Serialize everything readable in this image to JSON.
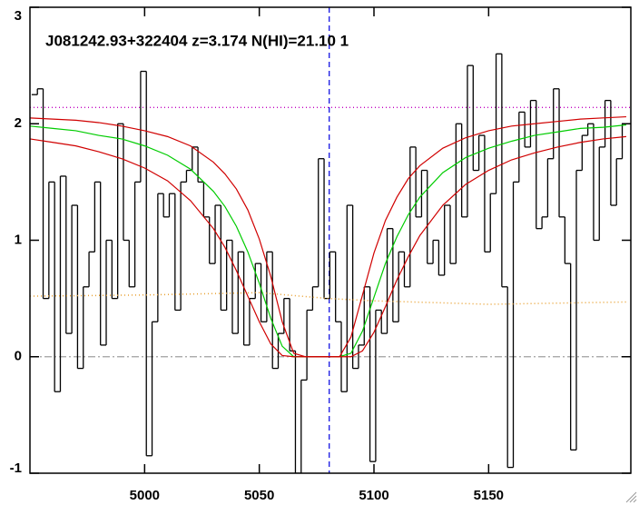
{
  "chart_data": {
    "type": "line",
    "title": "J081242.93+322404 z=3.174 N(HI)=21.10 1",
    "xlim": [
      4950,
      5212
    ],
    "ylim": [
      -1,
      3
    ],
    "xticks": [
      5000,
      5050,
      5100,
      5150
    ],
    "yticks": [
      -1,
      0,
      1,
      2,
      3
    ],
    "hlines": [
      {
        "y": 2.14,
        "color": "#c000c0",
        "style": "dotted"
      },
      {
        "y": 0,
        "color": "#a0a0a0",
        "style": "dashdot"
      }
    ],
    "vlines": [
      {
        "x": 5080.5,
        "color": "#0000e0",
        "style": "dashed"
      }
    ],
    "series": [
      {
        "color": "#000000",
        "style": "step",
        "x": [
          4952,
          4954.5,
          4957,
          4959.5,
          4962,
          4964.5,
          4967,
          4969.5,
          4972,
          4974.5,
          4977,
          4979.5,
          4982,
          4984.5,
          4987,
          4989.5,
          4992,
          4994.5,
          4997,
          4999.5,
          5002,
          5004.5,
          5007,
          5009.5,
          5012,
          5014.5,
          5017,
          5019.5,
          5022,
          5024.5,
          5027,
          5029.5,
          5032,
          5034.5,
          5037,
          5039.5,
          5042,
          5044.5,
          5047,
          5049.5,
          5052,
          5054.5,
          5057,
          5059.5,
          5062,
          5064.5,
          5067,
          5069.5,
          5072,
          5074.5,
          5077,
          5079.5,
          5082,
          5084.5,
          5087,
          5089.5,
          5092,
          5094.5,
          5097,
          5099.5,
          5102,
          5104.5,
          5107,
          5109.5,
          5112,
          5114.5,
          5117,
          5119.5,
          5122,
          5124.5,
          5127,
          5129.5,
          5132,
          5134.5,
          5137,
          5139.5,
          5142,
          5144.5,
          5147,
          5149.5,
          5152,
          5154.5,
          5157,
          5159.5,
          5162,
          5164.5,
          5167,
          5169.5,
          5172,
          5174.5,
          5177,
          5179.5,
          5182,
          5184.5,
          5187,
          5189.5,
          5192,
          5194.5,
          5197,
          5199.5,
          5202,
          5204.5,
          5207,
          5209.5
        ],
        "values": [
          2.25,
          2.3,
          0.5,
          1.5,
          -0.3,
          1.55,
          0.2,
          1.3,
          -0.1,
          0.6,
          0.9,
          1.5,
          0.1,
          1.0,
          0.5,
          2.0,
          1.0,
          0.6,
          1.5,
          2.45,
          -0.85,
          0.3,
          1.4,
          1.2,
          1.4,
          0.4,
          1.5,
          1.6,
          1.8,
          1.5,
          1.2,
          0.8,
          1.3,
          0.4,
          1.0,
          0.2,
          0.9,
          0.1,
          0.5,
          0.8,
          0.3,
          0.9,
          -0.1,
          0.2,
          0.5,
          0.05,
          -1.0,
          -0.2,
          0.4,
          0.6,
          1.7,
          0.5,
          0.9,
          0.3,
          -0.3,
          1.3,
          -0.1,
          0.1,
          0.6,
          -0.9,
          0.4,
          0.2,
          1.1,
          0.3,
          0.9,
          0.6,
          1.8,
          1.2,
          1.6,
          0.8,
          1.0,
          0.7,
          1.3,
          0.8,
          2.0,
          1.2,
          2.5,
          1.6,
          1.9,
          0.9,
          1.4,
          2.6,
          0.6,
          -0.95,
          1.5,
          2.1,
          1.8,
          2.2,
          1.1,
          1.2,
          1.7,
          2.3,
          1.2,
          0.8,
          -0.8,
          1.6,
          1.9,
          2.0,
          1.0,
          1.8,
          2.2,
          1.3,
          1.7,
          2.0
        ]
      },
      {
        "color": "#e8a030",
        "style": "dotted",
        "x": [
          4950,
          5000,
          5050,
          5080,
          5100,
          5150,
          5210
        ],
        "values": [
          0.52,
          0.53,
          0.55,
          0.5,
          0.48,
          0.45,
          0.47
        ]
      },
      {
        "color": "#00cc00",
        "style": "solid",
        "x": [
          4950,
          4960,
          4970,
          4980,
          4990,
          5000,
          5010,
          5020,
          5030,
          5035,
          5040,
          5045,
          5050,
          5055,
          5060,
          5065,
          5070,
          5075,
          5080,
          5085,
          5090,
          5095,
          5100,
          5105,
          5110,
          5115,
          5120,
          5130,
          5140,
          5150,
          5160,
          5170,
          5180,
          5190,
          5200,
          5210
        ],
        "values": [
          1.98,
          1.96,
          1.94,
          1.9,
          1.87,
          1.81,
          1.73,
          1.61,
          1.42,
          1.29,
          1.12,
          0.9,
          0.63,
          0.33,
          0.09,
          0,
          0,
          0,
          0,
          0,
          0.03,
          0.22,
          0.51,
          0.8,
          1.03,
          1.22,
          1.37,
          1.58,
          1.71,
          1.79,
          1.85,
          1.9,
          1.93,
          1.96,
          1.97,
          1.99
        ]
      },
      {
        "color": "#d00000",
        "style": "solid",
        "x": [
          4950,
          4960,
          4970,
          4980,
          4990,
          5000,
          5010,
          5020,
          5030,
          5035,
          5040,
          5045,
          5050,
          5055,
          5060,
          5065,
          5070,
          5075,
          5080,
          5085,
          5090,
          5095,
          5100,
          5105,
          5110,
          5115,
          5120,
          5130,
          5140,
          5150,
          5160,
          5170,
          5180,
          5190,
          5200,
          5210
        ],
        "values": [
          2.05,
          2.04,
          2.03,
          2.01,
          1.98,
          1.94,
          1.89,
          1.81,
          1.67,
          1.57,
          1.44,
          1.26,
          1.01,
          0.69,
          0.3,
          0.03,
          0,
          0,
          0,
          0,
          0.17,
          0.53,
          0.89,
          1.17,
          1.37,
          1.53,
          1.64,
          1.79,
          1.88,
          1.94,
          1.98,
          2.0,
          2.02,
          2.04,
          2.05,
          2.06
        ]
      },
      {
        "color": "#d00000",
        "style": "solid",
        "x": [
          4950,
          4960,
          4970,
          4980,
          4990,
          5000,
          5010,
          5020,
          5030,
          5035,
          5040,
          5045,
          5050,
          5055,
          5060,
          5065,
          5070,
          5075,
          5080,
          5085,
          5090,
          5095,
          5100,
          5105,
          5110,
          5115,
          5120,
          5130,
          5140,
          5150,
          5160,
          5170,
          5180,
          5190,
          5200,
          5210
        ],
        "values": [
          1.87,
          1.84,
          1.81,
          1.76,
          1.7,
          1.62,
          1.51,
          1.34,
          1.1,
          0.94,
          0.74,
          0.52,
          0.3,
          0.11,
          0.01,
          0,
          0,
          0,
          0,
          0,
          0,
          0.05,
          0.21,
          0.43,
          0.66,
          0.86,
          1.04,
          1.3,
          1.48,
          1.6,
          1.69,
          1.75,
          1.8,
          1.84,
          1.87,
          1.89
        ]
      }
    ]
  }
}
